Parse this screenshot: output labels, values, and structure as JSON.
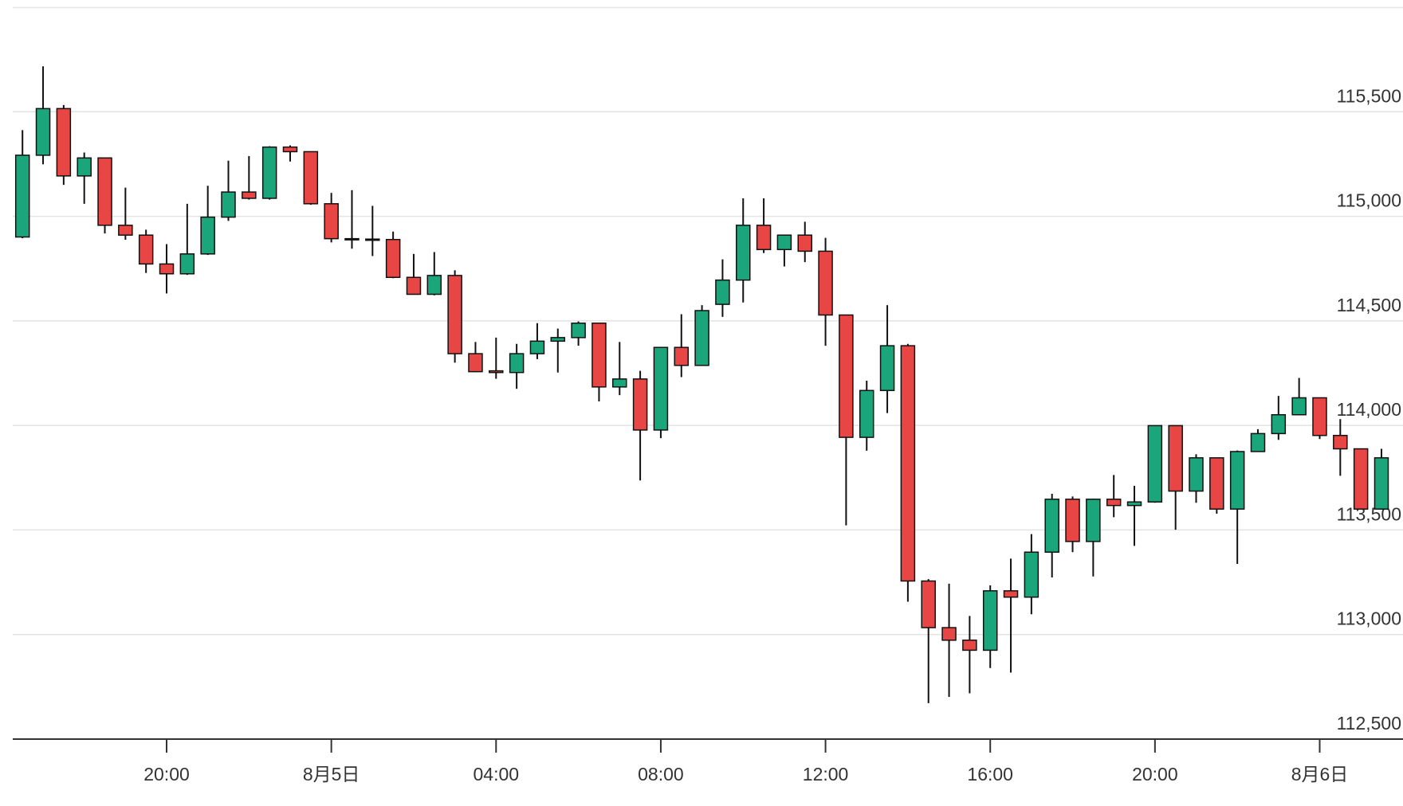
{
  "chart_data": {
    "type": "candlestick",
    "categories": [
      null,
      null,
      null,
      null,
      null,
      null,
      null,
      "20:00",
      null,
      null,
      null,
      null,
      null,
      null,
      null,
      "8月5日",
      null,
      null,
      null,
      null,
      null,
      null,
      null,
      "04:00",
      null,
      null,
      null,
      null,
      null,
      null,
      null,
      "08:00",
      null,
      null,
      null,
      null,
      null,
      null,
      null,
      "12:00",
      null,
      null,
      null,
      null,
      null,
      null,
      null,
      "16:00",
      null,
      null,
      null,
      null,
      null,
      null,
      null,
      "20:00",
      null,
      null,
      null,
      null,
      null,
      null,
      null,
      "8月6日",
      null,
      null,
      null
    ],
    "open": [
      114901,
      115292,
      115515,
      115193,
      115279,
      114957,
      114910,
      114772,
      114725,
      114820,
      114996,
      115116,
      115086,
      115331,
      115309,
      115060,
      114893,
      114891,
      114889,
      114708,
      114627,
      114717,
      114343,
      114261,
      114253,
      114343,
      114403,
      114420,
      114489,
      114184,
      114222,
      113978,
      114373,
      114287,
      114579,
      114695,
      114957,
      114841,
      114910,
      114833,
      114528,
      113943,
      114167,
      114381,
      113256,
      113033,
      112973,
      112925,
      113209,
      113179,
      113394,
      113647,
      113445,
      113647,
      113617,
      113634,
      113999,
      113686,
      113845,
      113600,
      113875,
      113961,
      114051,
      114132,
      113952,
      113888,
      113600
    ],
    "high": [
      115412,
      115717,
      115532,
      115305,
      115280,
      115137,
      114936,
      114867,
      115060,
      115146,
      115266,
      115288,
      115335,
      115339,
      115310,
      115112,
      115125,
      115050,
      114927,
      114820,
      114829,
      114742,
      114399,
      114420,
      114390,
      114489,
      114463,
      114497,
      114490,
      114399,
      114261,
      114375,
      114532,
      114575,
      114794,
      115086,
      115086,
      114912,
      114974,
      114897,
      114530,
      114214,
      114575,
      114390,
      113265,
      113243,
      113089,
      113235,
      113363,
      113480,
      113673,
      113660,
      113650,
      113763,
      113711,
      114000,
      114000,
      113862,
      113846,
      113880,
      113982,
      114141,
      114227,
      114133,
      114030,
      113890,
      113888
    ],
    "low": [
      114895,
      115249,
      115150,
      115060,
      114918,
      114888,
      114729,
      114631,
      114720,
      114815,
      114978,
      115080,
      115080,
      115262,
      115055,
      114875,
      114845,
      114810,
      114704,
      114625,
      114622,
      114300,
      114255,
      114223,
      114175,
      114317,
      114253,
      114381,
      114115,
      114145,
      113737,
      113939,
      114231,
      114285,
      114519,
      114588,
      114824,
      114760,
      114781,
      114381,
      113522,
      113879,
      114059,
      113157,
      112672,
      112702,
      112719,
      112840,
      112818,
      113097,
      113273,
      113394,
      113278,
      113561,
      113424,
      113630,
      113501,
      113630,
      113578,
      113338,
      113874,
      113931,
      114049,
      113935,
      113759,
      113598,
      113598
    ],
    "close": [
      115292,
      115515,
      115193,
      115279,
      114957,
      114910,
      114772,
      114725,
      114820,
      114996,
      115116,
      115086,
      115331,
      115309,
      115060,
      114893,
      114889,
      114889,
      114708,
      114627,
      114717,
      114343,
      114257,
      114253,
      114343,
      114403,
      114420,
      114489,
      114184,
      114222,
      113978,
      114373,
      114287,
      114549,
      114695,
      114957,
      114841,
      114910,
      114833,
      114528,
      113943,
      114167,
      114381,
      113256,
      113033,
      112973,
      112925,
      113209,
      113179,
      113394,
      113647,
      113445,
      113647,
      113617,
      113634,
      113999,
      113686,
      113845,
      113600,
      113875,
      113961,
      114051,
      114132,
      113952,
      113888,
      113600,
      113845
    ],
    "up_color": "#1aa57a",
    "down_color": "#e84545",
    "ylim": [
      112500,
      116000
    ],
    "yticks": [
      {
        "value": 112500,
        "label": "112,500"
      },
      {
        "value": 113000,
        "label": "113,000"
      },
      {
        "value": 113500,
        "label": "113,500"
      },
      {
        "value": 114000,
        "label": "114,000"
      },
      {
        "value": 114500,
        "label": "114,500"
      },
      {
        "value": 115000,
        "label": "115,000"
      },
      {
        "value": 115500,
        "label": "115,500"
      }
    ],
    "grid": true
  }
}
